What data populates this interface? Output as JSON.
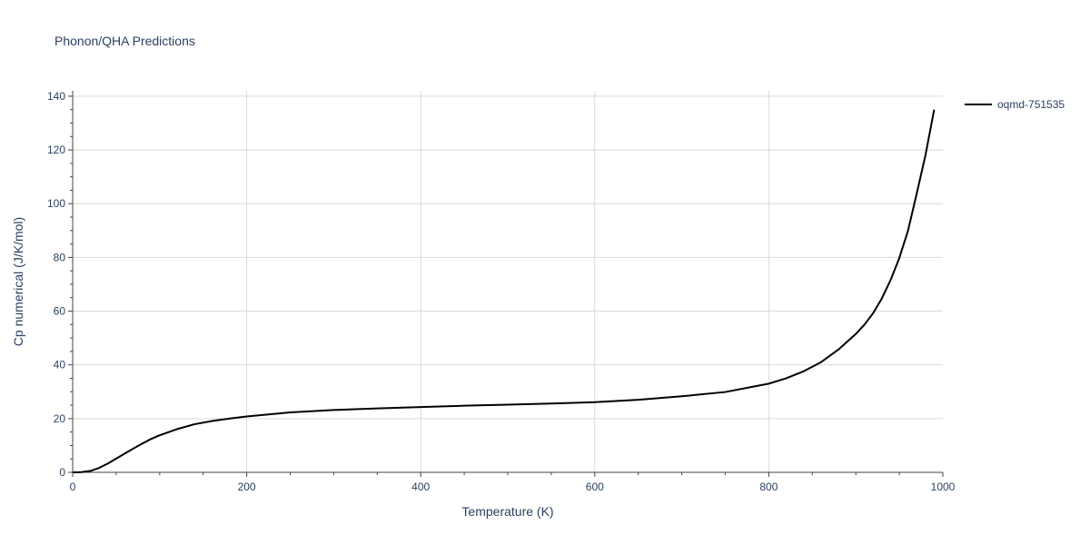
{
  "chart_data": {
    "type": "line",
    "title": "Phonon/QHA Predictions",
    "xlabel": "Temperature (K)",
    "ylabel": "Cp numerical (J/K/mol)",
    "xlim": [
      0,
      1000
    ],
    "ylim": [
      0,
      142
    ],
    "x_ticks": [
      0,
      200,
      400,
      600,
      800,
      1000
    ],
    "y_ticks": [
      0,
      20,
      40,
      60,
      80,
      100,
      120,
      140
    ],
    "grid": true,
    "legend_position": "top-right",
    "series": [
      {
        "name": "oqmd-751535",
        "color": "#000000",
        "x": [
          0,
          5,
          10,
          20,
          30,
          40,
          50,
          60,
          70,
          80,
          90,
          100,
          120,
          140,
          160,
          180,
          200,
          250,
          300,
          350,
          400,
          450,
          500,
          550,
          600,
          650,
          700,
          750,
          800,
          820,
          840,
          860,
          880,
          900,
          910,
          920,
          930,
          940,
          950,
          960,
          970,
          980,
          990
        ],
        "y": [
          0,
          0.02,
          0.1,
          0.5,
          1.6,
          3.2,
          5.1,
          7.0,
          8.9,
          10.7,
          12.4,
          13.8,
          16.1,
          17.9,
          19.1,
          20.0,
          20.8,
          22.3,
          23.2,
          23.8,
          24.3,
          24.8,
          25.2,
          25.6,
          26.1,
          27.0,
          28.3,
          29.9,
          33.0,
          35.0,
          37.6,
          41.0,
          45.7,
          51.5,
          55.0,
          59.3,
          64.8,
          71.6,
          79.8,
          90.0,
          103.8,
          118.0,
          135.0
        ]
      }
    ]
  }
}
